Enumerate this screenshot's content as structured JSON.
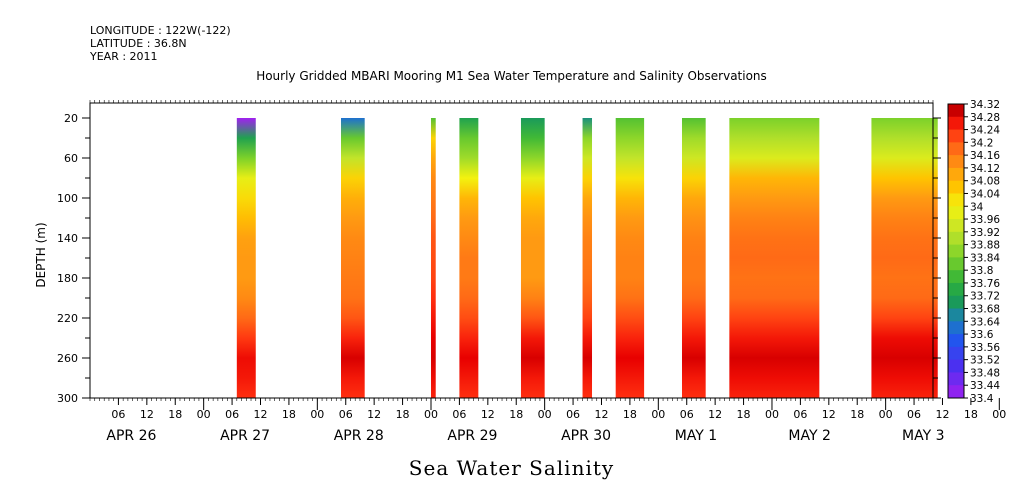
{
  "header": {
    "longitude": "LONGITUDE : 122W(-122)",
    "latitude": "LATITUDE : 36.8N",
    "year": "YEAR : 2011"
  },
  "chart_data": {
    "type": "heatmap",
    "title": "Hourly Gridded MBARI Mooring M1 Sea Water Temperature and Salinity Observations",
    "xlabel": "Sea Water Salinity",
    "ylabel": "DEPTH (m)",
    "units_x": "hours since 2011-04-25 18:00",
    "xlim": [
      0,
      178
    ],
    "ylim": [
      300,
      5
    ],
    "x_ticks_hours": [
      "06",
      "12",
      "18",
      "00",
      "06",
      "12",
      "18",
      "00",
      "06",
      "12",
      "18",
      "00",
      "06",
      "12",
      "18",
      "00",
      "06",
      "12",
      "18",
      "00",
      "06",
      "12",
      "18",
      "00",
      "06",
      "12",
      "18",
      "00",
      "06",
      "12",
      "18",
      "00"
    ],
    "date_labels": [
      "APR 26",
      "APR 27",
      "APR 28",
      "APR 29",
      "APR 30",
      "MAY 1",
      "MAY 2",
      "MAY 3"
    ],
    "y_ticks": [
      20,
      60,
      100,
      140,
      180,
      220,
      260,
      300
    ],
    "colorbar": {
      "min": 33.4,
      "max": 34.32,
      "step": 0.04,
      "labels": [
        "34.32",
        "34.28",
        "34.24",
        "34.2",
        "34.16",
        "34.12",
        "34.08",
        "34.04",
        "34",
        "33.96",
        "33.92",
        "33.88",
        "33.84",
        "33.8",
        "33.76",
        "33.72",
        "33.68",
        "33.64",
        "33.6",
        "33.56",
        "33.52",
        "33.48",
        "33.44",
        "33.4"
      ]
    },
    "depths": [
      20,
      40,
      60,
      80,
      100,
      120,
      140,
      160,
      180,
      200,
      220,
      240,
      260,
      280,
      300
    ],
    "data_segments": [
      {
        "start": "APR 27 01:00",
        "end": "APR 27 05:00",
        "profile": [
          33.4,
          33.72,
          33.84,
          33.98,
          34.03,
          34.07,
          34.11,
          34.12,
          34.12,
          34.14,
          34.18,
          34.23,
          34.27,
          34.26,
          34.24
        ]
      },
      {
        "start": "APR 27 23:00",
        "end": "APR 28 04:00",
        "profile": [
          33.62,
          33.82,
          33.92,
          34.04,
          34.09,
          34.12,
          34.14,
          34.15,
          34.16,
          34.17,
          34.2,
          34.25,
          34.29,
          34.26,
          34.24
        ]
      },
      {
        "start": "APR 28 18:00",
        "end": "APR 28 19:00",
        "profile": [
          33.8,
          34.04,
          34.1,
          34.14,
          34.16,
          34.18,
          34.2,
          34.21,
          34.22,
          34.24,
          34.26,
          34.28,
          34.29,
          34.27,
          34.25
        ]
      },
      {
        "start": "APR 29 00:00",
        "end": "APR 29 04:00",
        "profile": [
          33.72,
          33.82,
          33.88,
          34.0,
          34.08,
          34.12,
          34.14,
          34.16,
          34.16,
          34.18,
          34.21,
          34.25,
          34.28,
          34.26,
          34.24
        ]
      },
      {
        "start": "APR 29 13:00",
        "end": "APR 29 18:00",
        "profile": [
          33.7,
          33.78,
          33.86,
          33.98,
          34.06,
          34.1,
          34.12,
          34.12,
          34.12,
          34.15,
          34.2,
          34.26,
          34.29,
          34.26,
          34.24
        ]
      },
      {
        "start": "APR 30 02:00",
        "end": "APR 30 04:00",
        "profile": [
          33.68,
          33.86,
          33.94,
          34.04,
          34.1,
          34.13,
          34.15,
          34.16,
          34.17,
          34.19,
          34.22,
          34.26,
          34.29,
          34.26,
          34.24
        ]
      },
      {
        "start": "APR 30 09:00",
        "end": "APR 30 15:00",
        "profile": [
          33.8,
          33.86,
          33.92,
          34.02,
          34.08,
          34.12,
          34.14,
          34.15,
          34.15,
          34.17,
          34.21,
          34.25,
          34.28,
          34.26,
          34.24
        ]
      },
      {
        "start": "APR 30 23:00",
        "end": "MAY 1 04:00",
        "profile": [
          33.8,
          33.88,
          33.94,
          34.04,
          34.1,
          34.13,
          34.15,
          34.16,
          34.16,
          34.18,
          34.22,
          34.26,
          34.29,
          34.26,
          34.24
        ]
      },
      {
        "start": "MAY 1 09:00",
        "end": "MAY 2 04:00",
        "profile": [
          33.84,
          33.9,
          33.96,
          34.08,
          34.12,
          34.15,
          34.17,
          34.18,
          34.17,
          34.18,
          34.22,
          34.26,
          34.29,
          34.27,
          34.25
        ]
      },
      {
        "start": "MAY 2 15:00",
        "end": "MAY 3 05:00",
        "profile": [
          33.84,
          33.9,
          33.96,
          34.06,
          34.12,
          34.15,
          34.17,
          34.18,
          34.17,
          34.18,
          34.22,
          34.27,
          34.29,
          34.27,
          34.25
        ]
      }
    ]
  }
}
